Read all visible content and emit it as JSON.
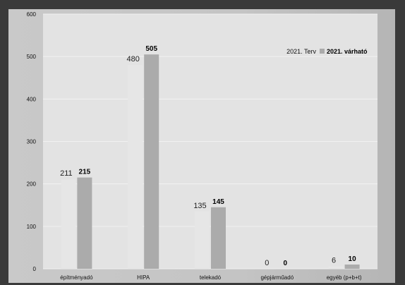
{
  "chart_data": {
    "type": "bar",
    "title": "",
    "xlabel": "",
    "ylabel": "",
    "ylim": [
      0,
      600
    ],
    "yticks": [
      0,
      100,
      200,
      300,
      400,
      500,
      600
    ],
    "grid": true,
    "legend_position": "top-right",
    "categories": [
      "építményadó",
      "HIPA",
      "telekadó",
      "gépjárműadó",
      "egyéb (p+b+t)"
    ],
    "series": [
      {
        "name": "2021. Terv",
        "values": [
          211,
          480,
          135,
          0,
          6
        ],
        "color": "#e6e6e6"
      },
      {
        "name": "2021. várható",
        "values": [
          215,
          505,
          145,
          0,
          10
        ],
        "color": "#ababab"
      }
    ],
    "colors": {
      "plot_background": "#e3e3e3",
      "gridline": "#f2f2f2"
    }
  }
}
